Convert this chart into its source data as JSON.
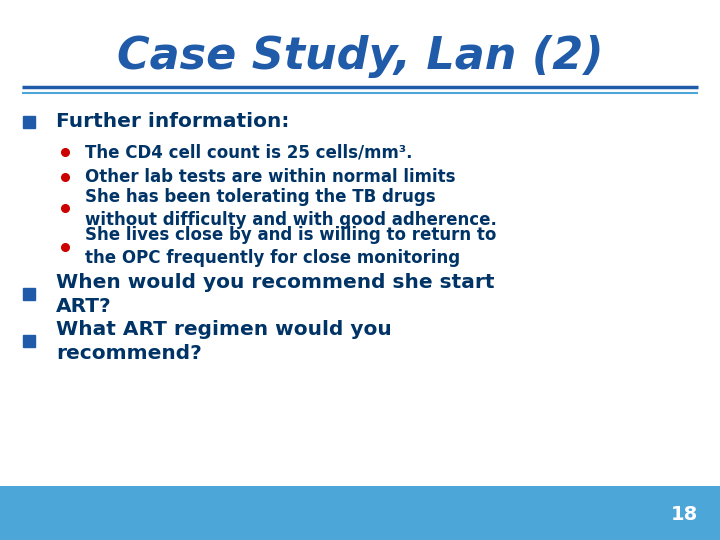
{
  "title": "Case Study, Lan (2)",
  "title_color": "#1F5BA8",
  "title_fontsize": 32,
  "title_fontstyle": "italic",
  "title_fontweight": "bold",
  "bg_color": "#FFFFFF",
  "footer_bg_color": "#4DA6D8",
  "separator_color1": "#1F5BA8",
  "separator_color2": "#4DA6D8",
  "bullet_color": "#1F5BA8",
  "sub_bullet_color": "#CC0000",
  "text_color": "#003366",
  "slide_number": "18",
  "bullets": [
    {
      "level": 0,
      "text": "Further information:"
    },
    {
      "level": 1,
      "text": "The CD4 cell count is 25 cells/mm³."
    },
    {
      "level": 1,
      "text": "Other lab tests are within normal limits"
    },
    {
      "level": 1,
      "text": "She has been tolerating the TB drugs\nwithout difficulty and with good adherence."
    },
    {
      "level": 1,
      "text": "She lives close by and is willing to return to\nthe OPC frequently for close monitoring"
    },
    {
      "level": 0,
      "text": "When would you recommend she start\nART?"
    },
    {
      "level": 0,
      "text": "What ART regimen would you\nrecommend?"
    }
  ]
}
